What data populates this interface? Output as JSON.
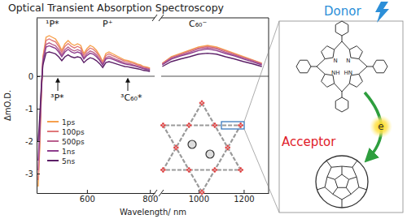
{
  "chart_data": {
    "type": "line",
    "title": "Optical Transient Absorption Spectroscopy",
    "x_label": "Wavelength/ nm",
    "y_label": "ΔmO.D.",
    "x": [
      445,
      450,
      455,
      460,
      470,
      480,
      490,
      500,
      510,
      520,
      530,
      540,
      550,
      560,
      570,
      580,
      590,
      600,
      610,
      620,
      630,
      640,
      650,
      660,
      670,
      680,
      690,
      700,
      710,
      720,
      730,
      740,
      750,
      760,
      770,
      780,
      790,
      800,
      840,
      880,
      920,
      960,
      1000,
      1040,
      1080,
      1120,
      1160,
      1200,
      1240,
      1280
    ],
    "xlim": [
      [
        440,
        815
      ],
      [
        835,
        1310
      ]
    ],
    "xticks": [
      600,
      800,
      1000,
      1200
    ],
    "ylim": [
      -3.6,
      1.8
    ],
    "yticks": [
      -3,
      -2,
      -1,
      0
    ],
    "grid": false,
    "legend": "left",
    "annotations": [
      "¹P*",
      "P⁺",
      "C₆₀⁻",
      "³P*",
      "³C₆₀*"
    ],
    "series": [
      {
        "name": "1ps",
        "color": "#f6a04d",
        "values": [
          -3.4,
          -2.2,
          -0.6,
          0.6,
          1.2,
          1.25,
          1.2,
          1.15,
          1.0,
          0.8,
          1.0,
          1.1,
          1.0,
          0.95,
          1.0,
          0.95,
          0.7,
          0.85,
          0.95,
          0.9,
          0.8,
          0.65,
          0.45,
          0.7,
          0.75,
          0.7,
          0.65,
          0.6,
          0.55,
          0.5,
          0.48,
          0.45,
          0.42,
          0.38,
          0.35,
          0.3,
          0.28,
          0.25,
          0.4,
          0.6,
          0.7,
          0.8,
          0.9,
          0.95,
          0.9,
          0.8,
          0.7,
          0.6,
          0.5,
          0.4
        ]
      },
      {
        "name": "100ps",
        "color": "#e0787a",
        "values": [
          -3.2,
          -2.0,
          -0.5,
          0.55,
          1.1,
          1.15,
          1.1,
          1.06,
          0.92,
          0.74,
          0.92,
          1.01,
          0.92,
          0.87,
          0.92,
          0.87,
          0.64,
          0.78,
          0.87,
          0.83,
          0.74,
          0.6,
          0.41,
          0.64,
          0.69,
          0.64,
          0.6,
          0.55,
          0.51,
          0.46,
          0.44,
          0.41,
          0.39,
          0.35,
          0.32,
          0.28,
          0.26,
          0.23,
          0.39,
          0.58,
          0.68,
          0.78,
          0.87,
          0.92,
          0.87,
          0.78,
          0.68,
          0.58,
          0.49,
          0.39
        ]
      },
      {
        "name": "500ps",
        "color": "#b9608f",
        "values": [
          -2.9,
          -1.8,
          -0.45,
          0.5,
          0.98,
          1.03,
          0.98,
          0.94,
          0.82,
          0.66,
          0.82,
          0.9,
          0.82,
          0.78,
          0.82,
          0.78,
          0.57,
          0.7,
          0.78,
          0.74,
          0.66,
          0.53,
          0.37,
          0.57,
          0.62,
          0.57,
          0.53,
          0.49,
          0.45,
          0.41,
          0.39,
          0.37,
          0.34,
          0.31,
          0.29,
          0.25,
          0.23,
          0.21,
          0.37,
          0.56,
          0.65,
          0.74,
          0.84,
          0.88,
          0.84,
          0.74,
          0.65,
          0.56,
          0.47,
          0.37
        ]
      },
      {
        "name": "1ns",
        "color": "#8e3e8e",
        "values": [
          -2.6,
          -1.6,
          -0.4,
          0.45,
          0.9,
          0.94,
          0.9,
          0.86,
          0.75,
          0.6,
          0.75,
          0.83,
          0.75,
          0.71,
          0.75,
          0.71,
          0.53,
          0.64,
          0.71,
          0.68,
          0.6,
          0.49,
          0.34,
          0.53,
          0.56,
          0.53,
          0.49,
          0.45,
          0.41,
          0.38,
          0.36,
          0.34,
          0.32,
          0.29,
          0.26,
          0.23,
          0.21,
          0.19,
          0.35,
          0.53,
          0.62,
          0.7,
          0.79,
          0.84,
          0.79,
          0.7,
          0.62,
          0.53,
          0.44,
          0.35
        ]
      },
      {
        "name": "5ns",
        "color": "#5b1f66",
        "values": [
          -2.0,
          -1.2,
          -0.3,
          0.35,
          0.72,
          0.75,
          0.72,
          0.69,
          0.6,
          0.48,
          0.6,
          0.66,
          0.6,
          0.57,
          0.6,
          0.57,
          0.42,
          0.51,
          0.57,
          0.54,
          0.48,
          0.39,
          0.27,
          0.42,
          0.45,
          0.42,
          0.39,
          0.36,
          0.33,
          0.3,
          0.29,
          0.27,
          0.25,
          0.23,
          0.21,
          0.18,
          0.17,
          0.15,
          0.3,
          0.45,
          0.53,
          0.6,
          0.68,
          0.71,
          0.68,
          0.6,
          0.53,
          0.45,
          0.38,
          0.3
        ]
      }
    ]
  },
  "illustration": {
    "donor": "Donor",
    "acceptor": "Acceptor",
    "electron": "e",
    "atoms": [
      "N",
      "NH",
      "N",
      "HN"
    ]
  }
}
